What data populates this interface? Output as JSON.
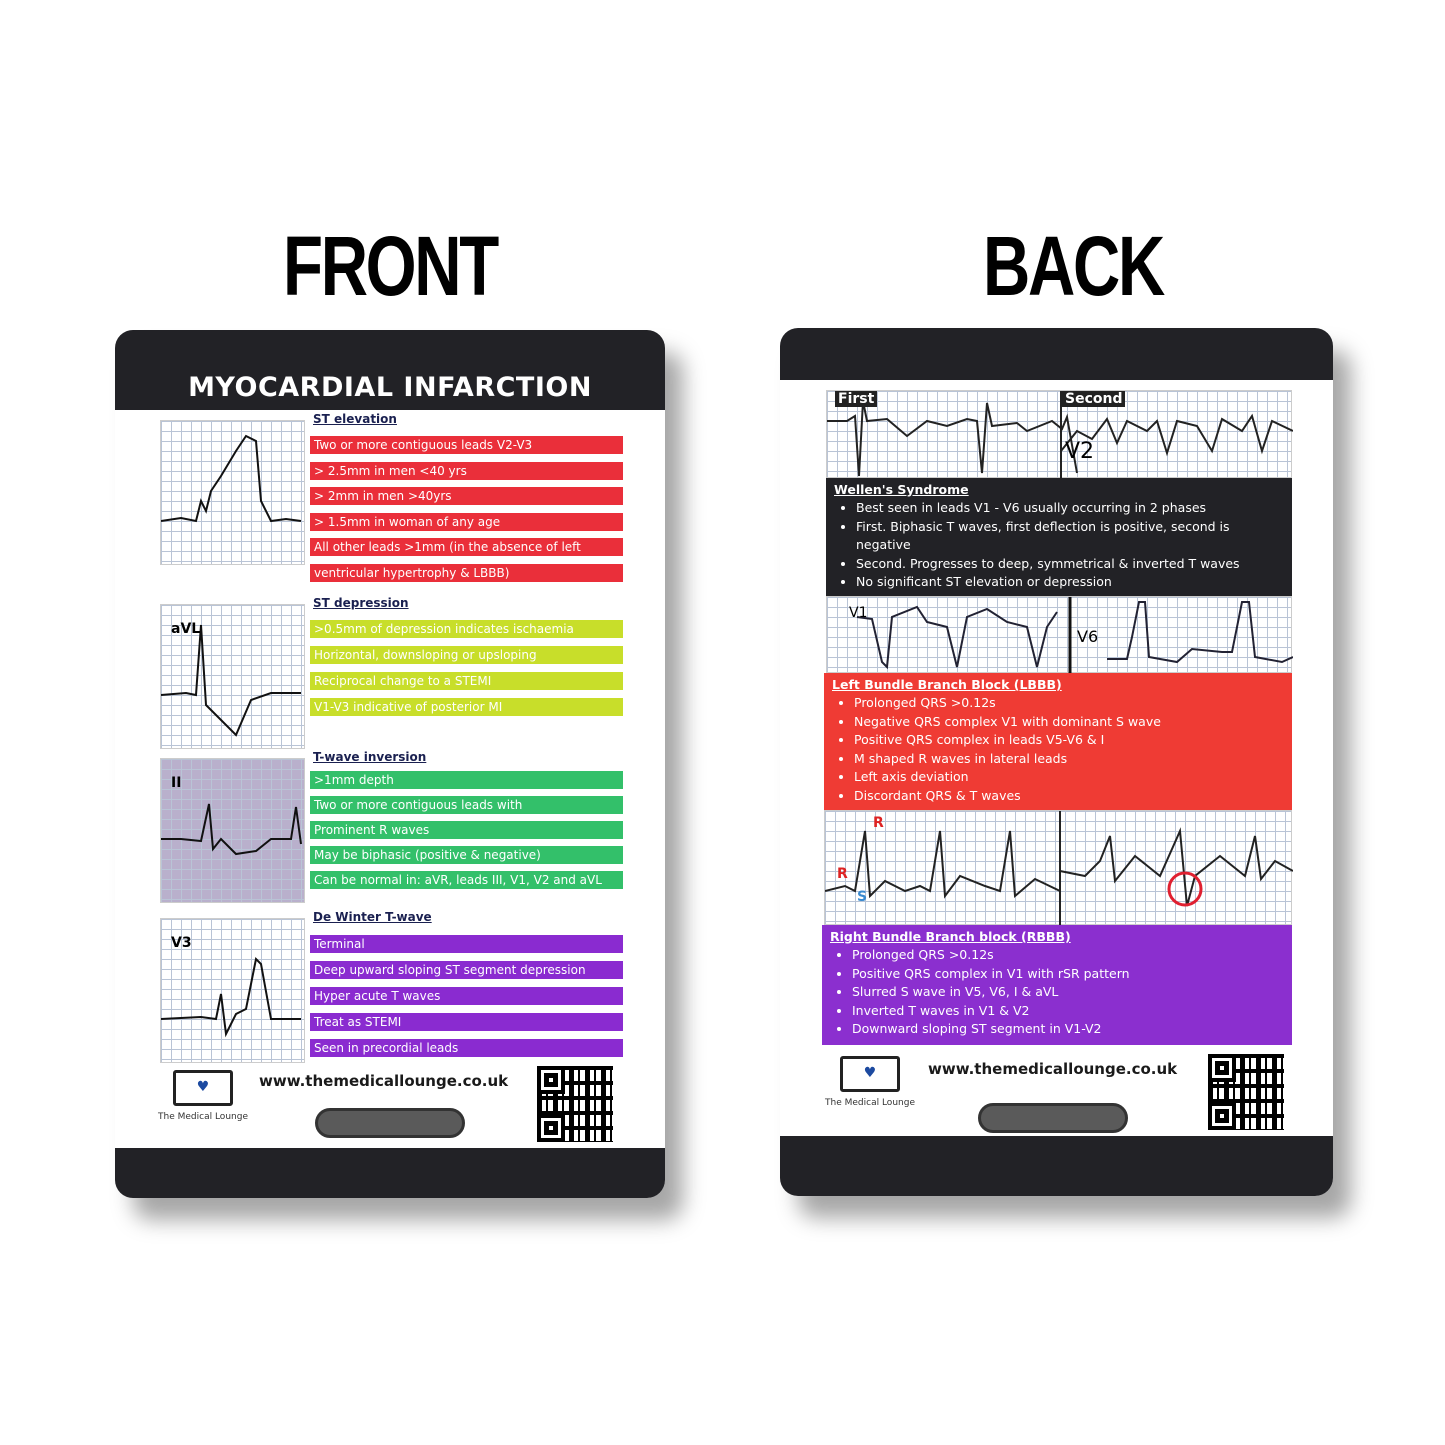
{
  "labels": {
    "front": "FRONT",
    "back": "BACK"
  },
  "colors": {
    "red": "#ea2f3a",
    "yellow": "#c8de2a",
    "green": "#33c06a",
    "purple": "#8a2bd0",
    "dark": "#222226",
    "lbbb": "#ef3b34",
    "rbbb": "#8b2fcf"
  },
  "front": {
    "title": "MYOCARDIAL INFARCTION",
    "sections": [
      {
        "heading": "ST elevation",
        "color": "#ea2f3a",
        "lead_label": "",
        "items": [
          "Two or more contiguous leads V2-V3",
          "> 2.5mm in men <40 yrs",
          "> 2mm in men >40yrs",
          "> 1.5mm in woman of any age",
          "All other leads >1mm (in the absence of left",
          "ventricular hypertrophy & LBBB)"
        ]
      },
      {
        "heading": "ST depression",
        "color": "#c8de2a",
        "lead_label": "aVL",
        "items": [
          ">0.5mm of depression indicates ischaemia",
          "Horizontal, downsloping or upsloping",
          "Reciprocal change to a STEMI",
          "V1-V3 indicative of posterior MI"
        ]
      },
      {
        "heading": "T-wave inversion",
        "color": "#33c06a",
        "lead_label": "II",
        "items": [
          ">1mm depth",
          "Two or more contiguous leads with",
          "Prominent R waves",
          "May be biphasic (positive & negative)",
          "Can be normal in: aVR, leads III, V1, V2 and aVL"
        ]
      },
      {
        "heading": "De Winter T-wave",
        "color": "#8a2bd0",
        "lead_label": "V3",
        "items": [
          "Terminal",
          "Deep upward sloping ST segment depression",
          "Hyper acute T waves",
          "Treat as STEMI",
          "Seen in precordial leads"
        ]
      }
    ],
    "website": "www.themedicallounge.co.uk",
    "logo_text": "The Medical Lounge",
    "logo_badge": "TML"
  },
  "back": {
    "strip_labels": {
      "first": "First",
      "second": "Second",
      "v2": "V2",
      "v1": "V1",
      "v6": "V6",
      "r": "R",
      "r2": "R",
      "s": "S"
    },
    "wellens": {
      "heading": "Wellen's Syndrome",
      "items": [
        "Best seen in leads V1 - V6 usually occurring in 2 phases",
        "First. Biphasic T waves, first deflection is positive, second is negative",
        "Second. Progresses to deep, symmetrical & inverted T waves",
        "No significant ST elevation or depression"
      ]
    },
    "lbbb": {
      "heading": "Left Bundle Branch Block (LBBB)",
      "items": [
        "Prolonged QRS >0.12s",
        "Negative QRS complex V1 with dominant S wave",
        "Positive QRS complex in leads V5-V6 & I",
        "M shaped R waves in lateral leads",
        "Left axis deviation",
        "Discordant QRS & T waves"
      ]
    },
    "rbbb": {
      "heading": "Right Bundle Branch block (RBBB)",
      "items": [
        "Prolonged QRS >0.12s",
        "Positive QRS complex in V1 with rSR pattern",
        "Slurred S wave in V5, V6, I & aVL",
        "Inverted T waves in V1 & V2",
        "Downward sloping ST segment in V1-V2"
      ]
    },
    "website": "www.themedicallounge.co.uk",
    "logo_text": "The Medical Lounge",
    "logo_badge": "TML"
  }
}
